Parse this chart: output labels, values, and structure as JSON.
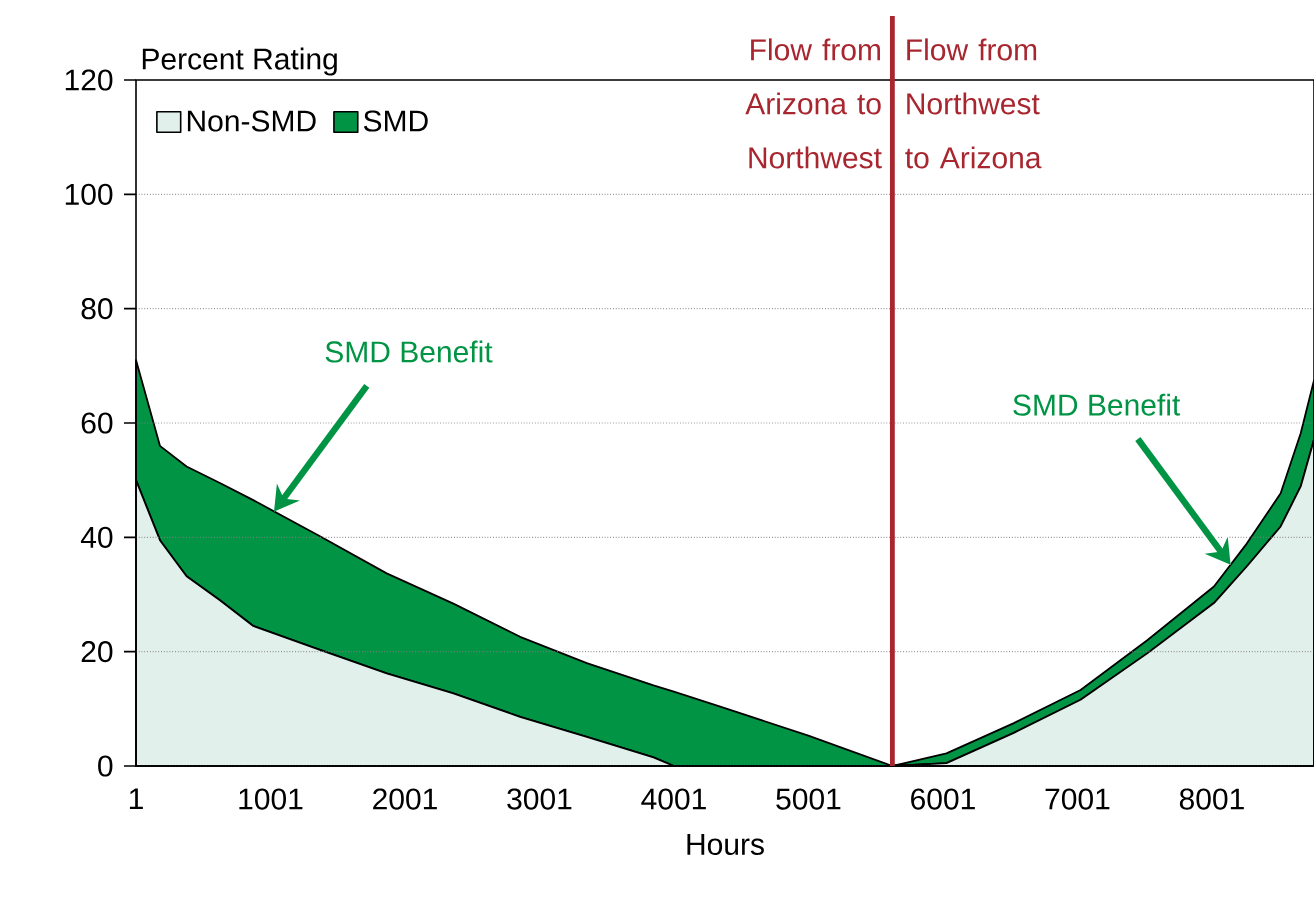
{
  "chart_data": {
    "type": "area",
    "stacked": true,
    "xlabel": "Hours",
    "ylabel": "Percent Rating",
    "x": [
      1,
      179,
      377,
      625,
      873,
      1369,
      1865,
      2361,
      2857,
      3353,
      3849,
      4000,
      4345,
      5000,
      5625,
      6027,
      6528,
      7024,
      7520,
      8016,
      8260,
      8512,
      8661,
      8760
    ],
    "series": [
      {
        "name": "Non-SMD",
        "color": "#e2f0ec",
        "values": [
          50,
          39.5,
          33.2,
          29,
          24.5,
          20.3,
          16.2,
          12.7,
          8.6,
          5.1,
          1.5,
          0,
          0,
          0,
          0,
          0.5,
          5.8,
          11.6,
          19.7,
          28.5,
          34.9,
          41.9,
          48.9,
          57.1
        ]
      },
      {
        "name": "SMD",
        "color": "#009444",
        "values": [
          21,
          16.5,
          19.2,
          20.5,
          22,
          19.9,
          17.5,
          15.7,
          14,
          12.9,
          12.6,
          13,
          10.4,
          5.3,
          0,
          1.7,
          1.7,
          1.7,
          2.3,
          2.9,
          4,
          5.8,
          9.3,
          10.4
        ]
      }
    ],
    "xlim": [
      1,
      8760
    ],
    "xticks": [
      1,
      1001,
      2001,
      3001,
      4001,
      5001,
      6001,
      7001,
      8001
    ],
    "ylim": [
      0,
      120
    ],
    "yticks": [
      0,
      20,
      40,
      60,
      80,
      100,
      120
    ],
    "grid": "y",
    "legend": "top left",
    "ref_lines": [
      {
        "axis": "x",
        "value": 5625,
        "color": "#a8262f"
      }
    ],
    "annotations": [
      "Flow from Arizona to Northwest",
      "Flow from Northwest to Arizona",
      {
        "text": "SMD Benefit",
        "x": 1027,
        "y": 44.5
      },
      {
        "text": "SMD Benefit",
        "x": 8140,
        "y": 35.2
      }
    ]
  }
}
